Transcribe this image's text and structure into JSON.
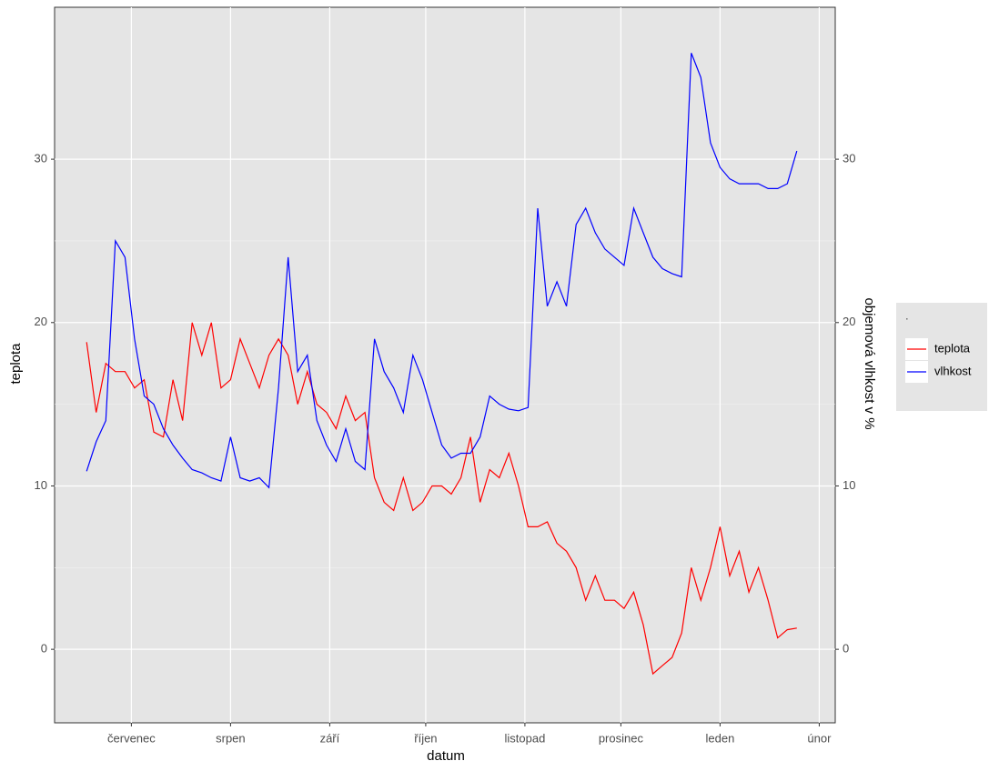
{
  "chart_data": {
    "type": "line",
    "x_label": "datum",
    "y_label": "teplota",
    "y2_label": "objemová vlhkost v %",
    "legend_title": ".",
    "legend_position": "right",
    "grid": true,
    "x": [
      0,
      3,
      6,
      9,
      12,
      15,
      18,
      21,
      24,
      27,
      30,
      33,
      36,
      39,
      42,
      45,
      48,
      51,
      54,
      57,
      60,
      63,
      66,
      69,
      72,
      75,
      78,
      81,
      84,
      87,
      90,
      93,
      96,
      99,
      102,
      105,
      108,
      111,
      114,
      117,
      120,
      123,
      126,
      129,
      132,
      135,
      138,
      141,
      144,
      147,
      150,
      153,
      156,
      159,
      162,
      165,
      168,
      171,
      174,
      177,
      180,
      183,
      186,
      189,
      192,
      195,
      198,
      201,
      204,
      207,
      210,
      213,
      216,
      219,
      222
    ],
    "xlim": [
      -10,
      234
    ],
    "xticks": [
      {
        "value": 14,
        "label": "červenec"
      },
      {
        "value": 45,
        "label": "srpen"
      },
      {
        "value": 76,
        "label": "září"
      },
      {
        "value": 106,
        "label": "říjen"
      },
      {
        "value": 137,
        "label": "listopad"
      },
      {
        "value": 167,
        "label": "prosinec"
      },
      {
        "value": 198,
        "label": "leden"
      },
      {
        "value": 229,
        "label": "únor"
      }
    ],
    "ylim": [
      -4.5,
      39.3
    ],
    "yticks": [
      0,
      10,
      20,
      30
    ],
    "y2lim": [
      -4.5,
      39.3
    ],
    "y2ticks": [
      0,
      10,
      20,
      30
    ],
    "series": [
      {
        "name": "teplota",
        "color": "#ff0000",
        "values": [
          18.8,
          14.5,
          17.5,
          17,
          17,
          16,
          16.5,
          13.3,
          13,
          16.5,
          14,
          20,
          18,
          20,
          16,
          16.5,
          19,
          17.5,
          16,
          18,
          19,
          18,
          15,
          17,
          15,
          14.5,
          13.5,
          15.5,
          14,
          14.5,
          10.5,
          9,
          8.5,
          10.5,
          8.5,
          9,
          10,
          10,
          9.5,
          10.5,
          13,
          9,
          11,
          10.5,
          12,
          10,
          7.5,
          7.5,
          7.8,
          6.5,
          6,
          5,
          3,
          4.5,
          3,
          3,
          2.5,
          3.5,
          1.5,
          -1.5,
          -1,
          -0.5,
          1,
          5,
          3,
          5,
          7.5,
          4.5,
          6,
          3.5,
          5,
          3,
          0.7,
          1.2,
          1.3
        ]
      },
      {
        "name": "vlhkost",
        "color": "#0000ff",
        "axis": "y2",
        "values": [
          10.9,
          12.7,
          14,
          25,
          24,
          19,
          15.5,
          15,
          13.5,
          12.5,
          11.7,
          11,
          10.8,
          10.5,
          10.3,
          13,
          10.5,
          10.3,
          10.5,
          9.9,
          16,
          24,
          17,
          18,
          14,
          12.5,
          11.5,
          13.5,
          11.5,
          11,
          19,
          17,
          16,
          14.5,
          18,
          16.5,
          14.5,
          12.5,
          11.7,
          12,
          12,
          13,
          15.5,
          15,
          14.7,
          14.6,
          14.8,
          27,
          21,
          22.5,
          21,
          26,
          27,
          25.5,
          24.5,
          24,
          23.5,
          27,
          25.5,
          24,
          23.3,
          23,
          22.8,
          36.5,
          35,
          31,
          29.5,
          28.8,
          28.5,
          28.5,
          28.5,
          28.2,
          28.2,
          28.5,
          30.5
        ]
      }
    ]
  }
}
